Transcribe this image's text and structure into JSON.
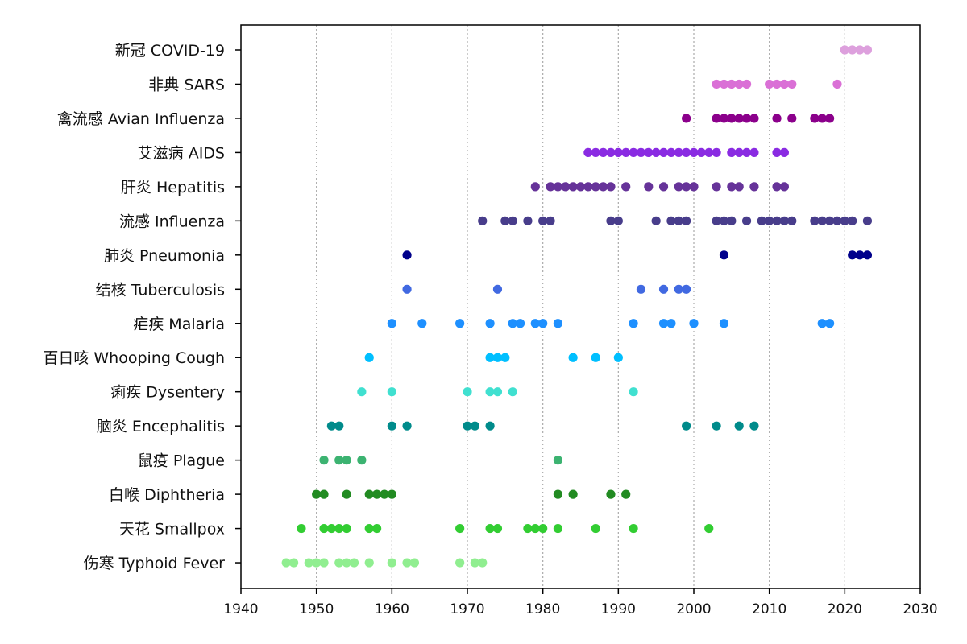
{
  "chart_data": {
    "type": "scatter",
    "title": "",
    "xlabel": "",
    "ylabel": "",
    "xlim": [
      1940,
      2030
    ],
    "xticks": [
      1940,
      1950,
      1960,
      1970,
      1980,
      1990,
      2000,
      2010,
      2020,
      2030
    ],
    "grid": "vertical dotted",
    "legend": "none",
    "series": [
      {
        "name": "伤寒 Typhoid Fever",
        "color": "#90ee90",
        "x": [
          1946,
          1947,
          1949,
          1950,
          1951,
          1953,
          1954,
          1955,
          1957,
          1960,
          1962,
          1963,
          1969,
          1971,
          1972
        ]
      },
      {
        "name": "天花 Smallpox",
        "color": "#32cd32",
        "x": [
          1948,
          1951,
          1952,
          1953,
          1954,
          1957,
          1958,
          1969,
          1973,
          1974,
          1978,
          1979,
          1980,
          1982,
          1987,
          1992,
          2002
        ]
      },
      {
        "name": "白喉 Diphtheria",
        "color": "#228b22",
        "x": [
          1950,
          1951,
          1954,
          1957,
          1958,
          1959,
          1960,
          1982,
          1984,
          1989,
          1991
        ]
      },
      {
        "name": "鼠疫 Plague",
        "color": "#3cb371",
        "x": [
          1951,
          1953,
          1954,
          1956,
          1982
        ]
      },
      {
        "name": "脑炎 Encephalitis",
        "color": "#008b8b",
        "x": [
          1952,
          1953,
          1960,
          1962,
          1970,
          1971,
          1973,
          1999,
          2003,
          2006,
          2008
        ]
      },
      {
        "name": "痢疾 Dysentery",
        "color": "#40e0d0",
        "x": [
          1956,
          1960,
          1970,
          1973,
          1974,
          1976,
          1992
        ]
      },
      {
        "name": "百日咳 Whooping Cough",
        "color": "#00bfff",
        "x": [
          1957,
          1973,
          1974,
          1975,
          1984,
          1987,
          1990
        ]
      },
      {
        "name": "疟疾 Malaria",
        "color": "#1e90ff",
        "x": [
          1960,
          1964,
          1969,
          1973,
          1976,
          1977,
          1979,
          1980,
          1982,
          1992,
          1996,
          1997,
          2000,
          2004,
          2017,
          2018
        ]
      },
      {
        "name": "结核 Tuberculosis",
        "color": "#4169e1",
        "x": [
          1962,
          1974,
          1993,
          1996,
          1998,
          1999
        ]
      },
      {
        "name": "肺炎 Pneumonia",
        "color": "#00008b",
        "x": [
          1962,
          2004,
          2021,
          2022,
          2023
        ]
      },
      {
        "name": "流感 Influenza",
        "color": "#483d8b",
        "x": [
          1972,
          1975,
          1976,
          1978,
          1980,
          1981,
          1989,
          1990,
          1995,
          1997,
          1998,
          1999,
          2003,
          2004,
          2005,
          2007,
          2009,
          2010,
          2011,
          2012,
          2013,
          2016,
          2017,
          2018,
          2019,
          2020,
          2021,
          2023
        ]
      },
      {
        "name": "肝炎 Hepatitis",
        "color": "#663399",
        "x": [
          1979,
          1981,
          1982,
          1983,
          1984,
          1985,
          1986,
          1987,
          1988,
          1989,
          1991,
          1994,
          1996,
          1998,
          1999,
          2000,
          2003,
          2005,
          2006,
          2008,
          2011,
          2012
        ]
      },
      {
        "name": "艾滋病 AIDS",
        "color": "#8a2be2",
        "x": [
          1986,
          1987,
          1988,
          1989,
          1990,
          1991,
          1992,
          1993,
          1994,
          1995,
          1996,
          1997,
          1998,
          1999,
          2000,
          2001,
          2002,
          2003,
          2005,
          2006,
          2007,
          2008,
          2011,
          2012
        ]
      },
      {
        "name": "禽流感 Avian Influenza",
        "color": "#8b008b",
        "x": [
          1999,
          2003,
          2004,
          2005,
          2006,
          2007,
          2008,
          2011,
          2013,
          2016,
          2017,
          2018
        ]
      },
      {
        "name": "非典 SARS",
        "color": "#da70d6",
        "x": [
          2003,
          2004,
          2005,
          2006,
          2007,
          2010,
          2011,
          2012,
          2013,
          2019
        ]
      },
      {
        "name": "新冠 COVID-19",
        "color": "#dda0dd",
        "x": [
          2020,
          2021,
          2022,
          2023
        ]
      }
    ]
  }
}
